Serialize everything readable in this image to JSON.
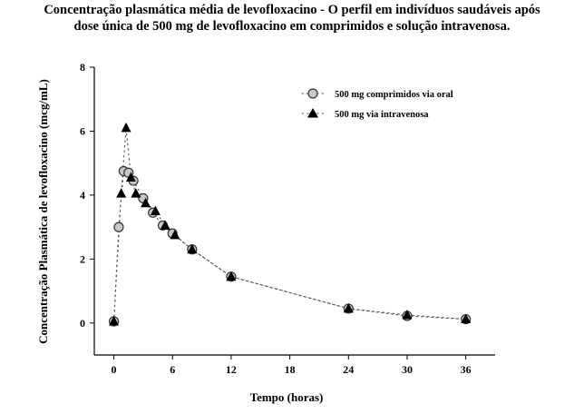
{
  "chart_data": {
    "type": "line",
    "title_line1": "Concentração plasmática média de levofloxacino - O perfil em indivíduos saudáveis após",
    "title_line2": "dose única de 500 mg de levofloxacino em comprimidos e solução intravenosa.",
    "xlabel": "Tempo (horas)",
    "ylabel": "Concentração Plasmática de levofloxacino (mcg/mL)",
    "xlim": [
      -2,
      39
    ],
    "ylim": [
      -1,
      8
    ],
    "xticks": [
      0,
      6,
      12,
      18,
      24,
      30,
      36
    ],
    "yticks": [
      0,
      2,
      4,
      6,
      8
    ],
    "legend_position": "top-right",
    "series": [
      {
        "name": "500 mg comprimidos via oral",
        "marker": "circle",
        "color": "#c8c8c8",
        "x": [
          0,
          0.5,
          1,
          1.5,
          2,
          3,
          4,
          5,
          6,
          8,
          12,
          24,
          30,
          36
        ],
        "y": [
          0.05,
          3.0,
          4.75,
          4.7,
          4.45,
          3.9,
          3.45,
          3.05,
          2.8,
          2.3,
          1.45,
          0.45,
          0.22,
          0.12
        ]
      },
      {
        "name": "500 mg via intravenosa",
        "marker": "triangle",
        "color": "#000000",
        "x": [
          0,
          0.75,
          1.25,
          1.75,
          2.25,
          3.25,
          4.25,
          5.25,
          6.25,
          8,
          12,
          24,
          30,
          36
        ],
        "y": [
          0.05,
          4.05,
          6.1,
          4.55,
          4.05,
          3.75,
          3.5,
          3.05,
          2.75,
          2.3,
          1.45,
          0.45,
          0.25,
          0.12
        ]
      }
    ]
  }
}
